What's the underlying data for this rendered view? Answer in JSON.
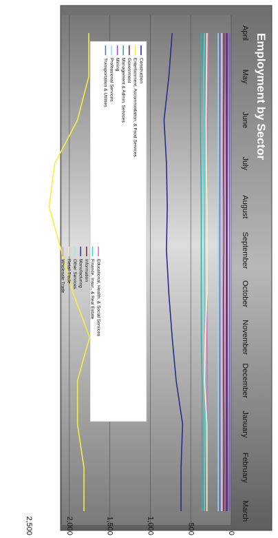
{
  "chart_data": {
    "type": "line",
    "title": "Employment by Sector",
    "categories": [
      "April",
      "May",
      "June",
      "July",
      "August",
      "September",
      "October",
      "November",
      "December",
      "January",
      "February",
      "March"
    ],
    "ylim": [
      0,
      2500
    ],
    "yticks": [
      0,
      500,
      1000,
      1500,
      2000,
      2500
    ],
    "ytick_labels": [
      "0",
      "500",
      "1,000",
      "1,500",
      "2,000",
      "2,500"
    ],
    "grid": true,
    "legend_placement": "center",
    "series": [
      {
        "name": "Construction",
        "color": "#2a2a8c",
        "values": [
          730,
          770,
          830,
          800,
          790,
          800,
          770,
          730,
          680,
          600,
          620,
          620
        ]
      },
      {
        "name": "Entertainment, Accommodation, & Food Services",
        "color": "#f2f040",
        "values": [
          1760,
          1760,
          1900,
          2180,
          2250,
          2100,
          1950,
          1750,
          1900,
          1900,
          1820,
          1820
        ]
      },
      {
        "name": "Government",
        "color": "#7a2a6a",
        "values": [
          90,
          90,
          95,
          95,
          90,
          90,
          95,
          95,
          95,
          90,
          90,
          95
        ]
      },
      {
        "name": "Management & Admin. Services",
        "color": "#30b0a8",
        "values": [
          370,
          380,
          380,
          375,
          370,
          370,
          370,
          370,
          360,
          360,
          360,
          360
        ]
      },
      {
        "name": "Mining",
        "color": "#9a4ad0",
        "values": [
          20,
          20,
          20,
          20,
          20,
          20,
          20,
          20,
          20,
          20,
          20,
          20
        ]
      },
      {
        "name": "Professional Services",
        "color": "#9ad8f0",
        "values": [
          160,
          160,
          160,
          160,
          160,
          160,
          160,
          160,
          160,
          160,
          160,
          160
        ]
      },
      {
        "name": "Transportation & Utilities",
        "color": "#4a7ad0",
        "values": [
          140,
          140,
          140,
          140,
          140,
          140,
          140,
          140,
          140,
          140,
          140,
          140
        ]
      },
      {
        "name": "Educational, Health, & Social Services",
        "color": "#d070c8",
        "values": [
          290,
          290,
          295,
          300,
          300,
          300,
          300,
          300,
          295,
          295,
          300,
          300
        ]
      },
      {
        "name": "Finance, Insur., & Real Estate",
        "color": "#40d8e0",
        "values": [
          330,
          340,
          340,
          335,
          330,
          330,
          330,
          325,
          325,
          320,
          330,
          330
        ]
      },
      {
        "name": "Information",
        "color": "#8a2a4a",
        "values": [
          60,
          60,
          60,
          60,
          60,
          60,
          60,
          60,
          60,
          60,
          60,
          60
        ]
      },
      {
        "name": "Manufacturing",
        "color": "#3a3ab0",
        "values": [
          50,
          50,
          50,
          50,
          50,
          50,
          50,
          50,
          50,
          50,
          50,
          50
        ]
      },
      {
        "name": "Other Services",
        "color": "#a8e8e0",
        "values": [
          120,
          120,
          120,
          120,
          120,
          120,
          120,
          120,
          120,
          120,
          120,
          120
        ]
      },
      {
        "name": "Retail Trade",
        "color": "#f8f8d0",
        "values": [
          300,
          305,
          310,
          305,
          300,
          300,
          300,
          320,
          330,
          300,
          300,
          300
        ]
      },
      {
        "name": "Wholesale Trade",
        "color": "#d89ad0",
        "values": [
          110,
          110,
          110,
          110,
          110,
          110,
          110,
          110,
          110,
          110,
          110,
          110
        ]
      }
    ]
  }
}
